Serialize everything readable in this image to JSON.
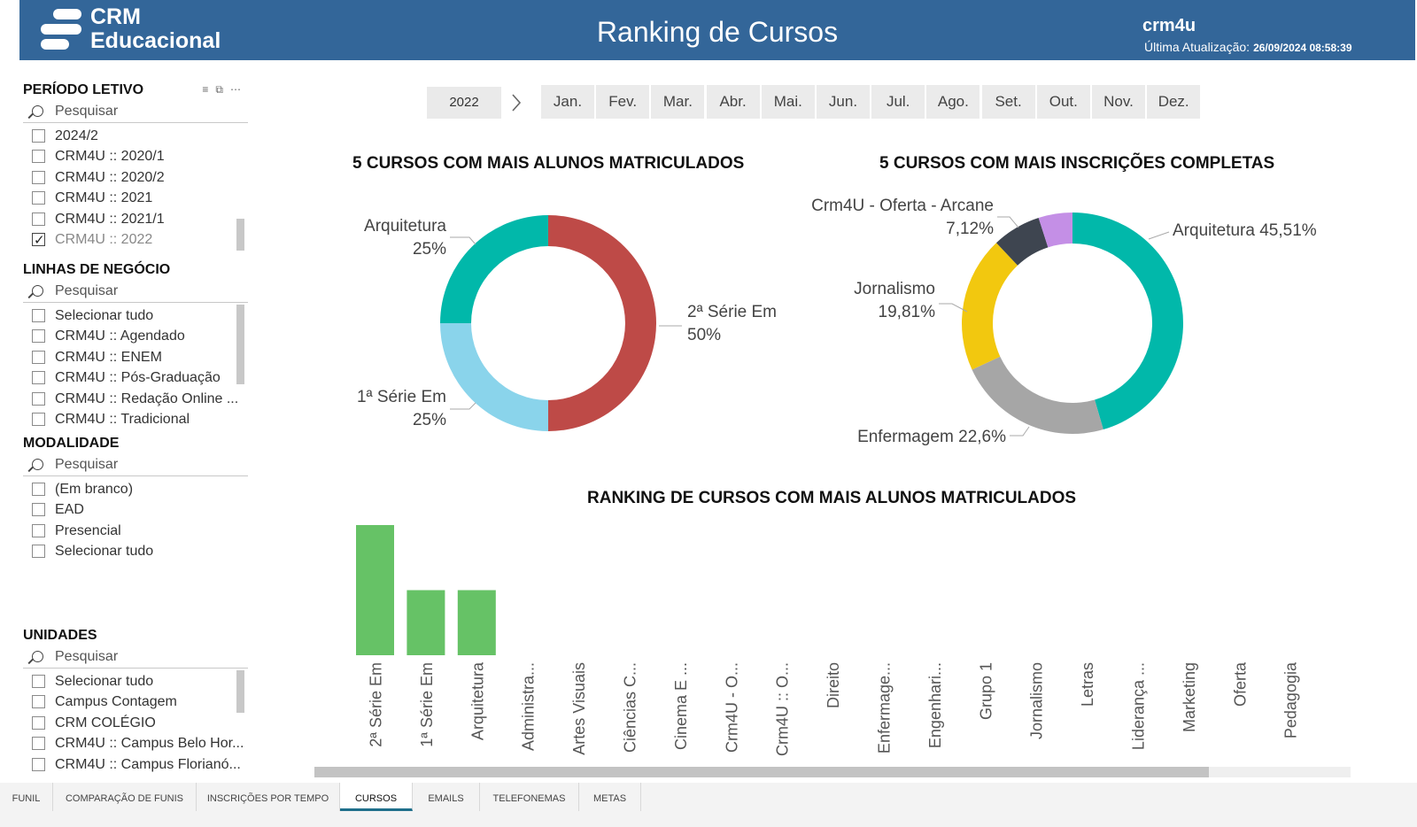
{
  "header": {
    "logo_line1": "CRM",
    "logo_line2": "Educacional",
    "title": "Ranking de Cursos",
    "user": "crm4u",
    "updated_label": "Última Atualização:",
    "updated_value": "26/09/2024 08:58:39",
    "bg_color": "#336699"
  },
  "slicers": {
    "periodo": {
      "title": "PERÍODO LETIVO",
      "search_placeholder": "Pesquisar",
      "items": [
        {
          "label": "2024/2",
          "checked": false
        },
        {
          "label": "CRM4U :: 2020/1",
          "checked": false
        },
        {
          "label": "CRM4U :: 2020/2",
          "checked": false
        },
        {
          "label": "CRM4U :: 2021",
          "checked": false
        },
        {
          "label": "CRM4U :: 2021/1",
          "checked": false
        },
        {
          "label": "CRM4U :: 2022",
          "checked": true
        }
      ]
    },
    "linhas": {
      "title": "LINHAS DE NEGÓCIO",
      "search_placeholder": "Pesquisar",
      "items": [
        {
          "label": "Selecionar tudo",
          "checked": false
        },
        {
          "label": "CRM4U :: Agendado",
          "checked": false
        },
        {
          "label": "CRM4U :: ENEM",
          "checked": false
        },
        {
          "label": "CRM4U :: Pós-Graduação",
          "checked": false
        },
        {
          "label": "CRM4U :: Redação Online ...",
          "checked": false
        },
        {
          "label": "CRM4U :: Tradicional",
          "checked": false
        }
      ]
    },
    "modalidade": {
      "title": "MODALIDADE",
      "search_placeholder": "Pesquisar",
      "items": [
        {
          "label": "Selecionar tudo",
          "checked": false
        },
        {
          "label": "(Em branco)",
          "checked": false
        },
        {
          "label": "EAD",
          "checked": false
        },
        {
          "label": "Presencial",
          "checked": false
        }
      ]
    },
    "unidades": {
      "title": "UNIDADES",
      "search_placeholder": "Pesquisar",
      "items": [
        {
          "label": "Selecionar tudo",
          "checked": false
        },
        {
          "label": "Campus Contagem",
          "checked": false
        },
        {
          "label": "CRM COLÉGIO",
          "checked": false
        },
        {
          "label": "CRM4U :: Campus Belo Hor...",
          "checked": false
        },
        {
          "label": "CRM4U :: Campus Florianó...",
          "checked": false
        }
      ]
    }
  },
  "timeline": {
    "year": "2022",
    "months": [
      "Jan.",
      "Fev.",
      "Mar.",
      "Abr.",
      "Mai.",
      "Jun.",
      "Jul.",
      "Ago.",
      "Set.",
      "Out.",
      "Nov.",
      "Dez."
    ]
  },
  "tabs": [
    {
      "label": "FUNIL",
      "active": false
    },
    {
      "label": "COMPARAÇÃO DE FUNIS",
      "active": false
    },
    {
      "label": "INSCRIÇÕES POR TEMPO",
      "active": false
    },
    {
      "label": "CURSOS",
      "active": true
    },
    {
      "label": "EMAILS",
      "active": false
    },
    {
      "label": "TELEFONEMAS",
      "active": false
    },
    {
      "label": "METAS",
      "active": false
    }
  ],
  "chart_data": [
    {
      "type": "pie",
      "title": "5 CURSOS COM MAIS ALUNOS MATRICULADOS",
      "donut": true,
      "slices": [
        {
          "name": "2ª Série Em",
          "value": 50,
          "label": "50%",
          "color": "#BE4A47"
        },
        {
          "name": "1ª Série Em",
          "value": 25,
          "label": "25%",
          "color": "#8AD4EB"
        },
        {
          "name": "Arquitetura",
          "value": 25,
          "label": "25%",
          "color": "#01B8AA"
        }
      ]
    },
    {
      "type": "pie",
      "title": "5 CURSOS COM MAIS INSCRIÇÕES COMPLETAS",
      "donut": true,
      "slices": [
        {
          "name": "Arquitetura",
          "value": 45.51,
          "label": "45,51%",
          "color": "#01B8AA"
        },
        {
          "name": "Enfermagem",
          "value": 22.6,
          "label": "22,6%",
          "color": "#A6A6A6"
        },
        {
          "name": "Jornalismo",
          "value": 19.81,
          "label": "19,81%",
          "color": "#F2C80F"
        },
        {
          "name": "Crm4U - Oferta - Arcane",
          "value": 7.12,
          "label": "7,12%",
          "color": "#3E4550"
        },
        {
          "name": "",
          "value": 4.96,
          "label": "",
          "color": "#C48FE6"
        }
      ]
    },
    {
      "type": "bar",
      "title": "RANKING DE CURSOS COM MAIS ALUNOS MATRICULADOS",
      "color": "#66C266",
      "categories": [
        "2ª Série Em",
        "1ª Série Em",
        "Arquitetura",
        "Administra...",
        "Artes Visuais",
        "Ciências C...",
        "Cinema E ...",
        "Crm4U - O...",
        "Crm4U :: O...",
        "Direito",
        "Enfermage...",
        "Engenhari...",
        "Grupo 1",
        "Jornalismo",
        "Letras",
        "Liderança ...",
        "Marketing",
        "Oferta",
        "Pedagogia"
      ],
      "values": [
        2,
        1,
        1,
        0,
        0,
        0,
        0,
        0,
        0,
        0,
        0,
        0,
        0,
        0,
        0,
        0,
        0,
        0,
        0
      ]
    }
  ]
}
